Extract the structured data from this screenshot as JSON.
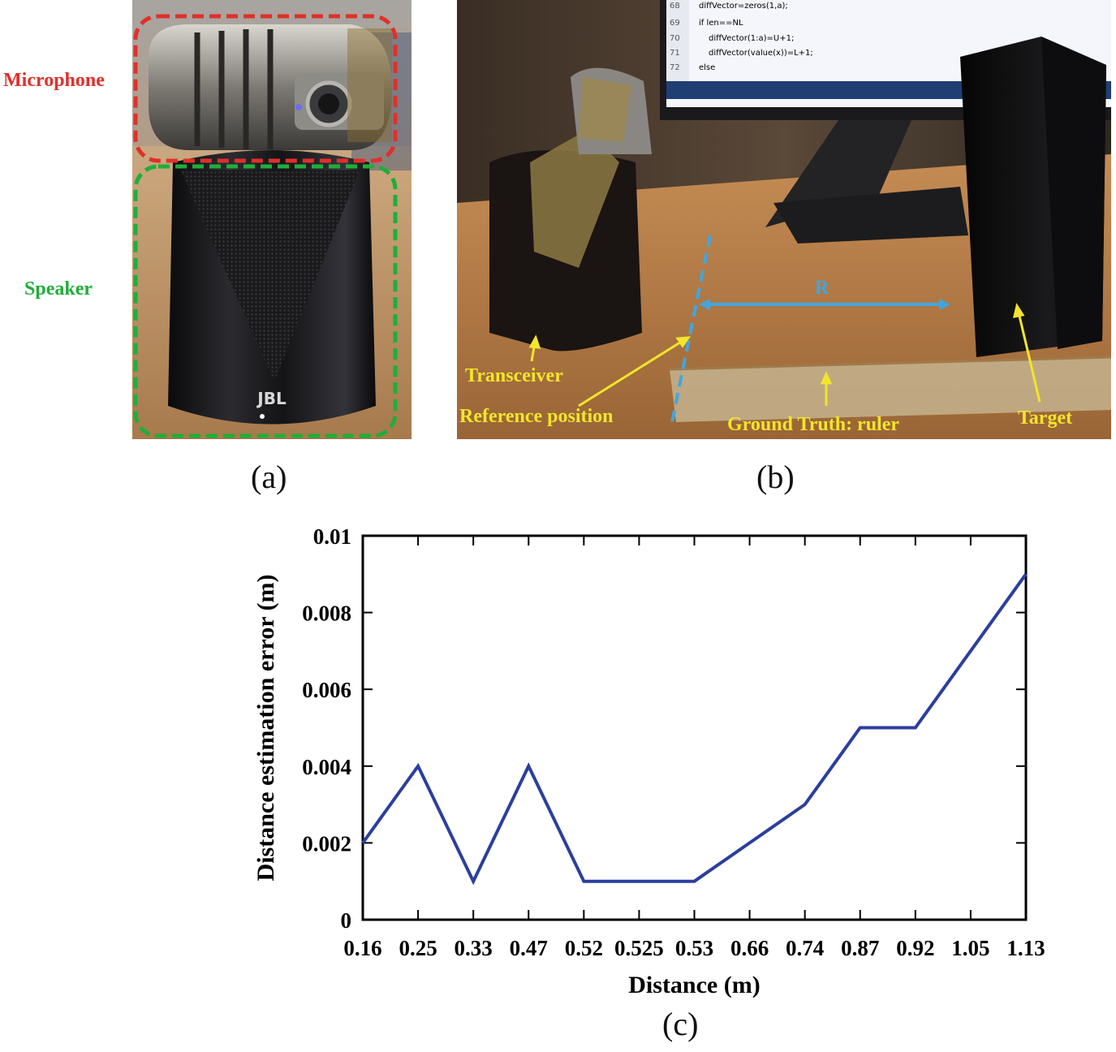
{
  "panel_a": {
    "caption": "(a)",
    "labels": {
      "microphone": "Microphone",
      "speaker": "Speaker",
      "brand": "JBL"
    },
    "colors": {
      "microphone_box": "#e0302a",
      "speaker_box": "#1fae3a"
    }
  },
  "panel_b": {
    "caption": "(b)",
    "labels": {
      "transceiver": "Transceiver",
      "reference": "Reference position",
      "ruler": "Ground Truth: ruler",
      "target": "Target",
      "range": "R"
    },
    "code_lines": [
      {
        "num": "68",
        "text": "diffVector=zeros(1,a);"
      },
      {
        "num": "69",
        "text": "if len==NL"
      },
      {
        "num": "70",
        "text": "    diffVector(1:a)=U+1;"
      },
      {
        "num": "71",
        "text": "    diffVector(value(x))=L+1;"
      },
      {
        "num": "72",
        "text": "else"
      }
    ],
    "colors": {
      "annotation": "#f2e52b",
      "range": "#3fa7e0"
    }
  },
  "panel_c": {
    "caption": "(c)",
    "chart_data": {
      "type": "line",
      "xlabel": "Distance (m)",
      "ylabel": "Distance estimation error (m)",
      "categories": [
        "0.16",
        "0.25",
        "0.33",
        "0.47",
        "0.52",
        "0.525",
        "0.53",
        "0.66",
        "0.74",
        "0.87",
        "0.92",
        "1.05",
        "1.13"
      ],
      "series": [
        {
          "values": [
            0.002,
            0.004,
            0.001,
            0.004,
            0.001,
            0.001,
            0.001,
            0.002,
            0.003,
            0.005,
            0.005,
            0.007,
            0.009
          ]
        }
      ],
      "ylim": [
        0,
        0.01
      ],
      "yticks": [
        "0",
        "0.002",
        "0.004",
        "0.006",
        "0.008",
        "0.01"
      ],
      "grid": false,
      "line_color": "#2b3f9c"
    }
  }
}
